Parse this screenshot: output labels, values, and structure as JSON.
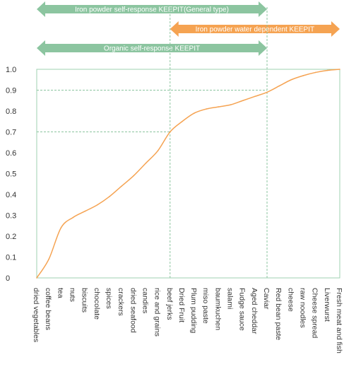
{
  "chart_data": {
    "type": "line",
    "categories": [
      "dried vegetables",
      "coffee beans",
      "tea",
      "nuts",
      "biscuits",
      "chocolate",
      "spices",
      "crackers",
      "dried seafood",
      "candies",
      "rice and grains",
      "beef jerks",
      "Dried Fruit",
      "Plum pudding",
      "miso paste",
      "baumkuchen",
      "salami",
      "Fudge sauce",
      "Aged cheddar",
      "Caviar",
      "Red bean paste",
      "cheese",
      "raw noodles",
      "Cheese spread",
      "Liverwurst",
      "Fresh meat and fish"
    ],
    "values": [
      0.0,
      0.09,
      0.24,
      0.29,
      0.32,
      0.35,
      0.39,
      0.44,
      0.49,
      0.55,
      0.61,
      0.7,
      0.75,
      0.79,
      0.81,
      0.82,
      0.83,
      0.85,
      0.87,
      0.89,
      0.92,
      0.95,
      0.97,
      0.985,
      0.995,
      1.0
    ],
    "yticks": [
      "0",
      "0.1",
      "0.2",
      "0.3",
      "0.4",
      "0.5",
      "0.6",
      "0.7",
      "0.8",
      "0.9",
      "1.0"
    ],
    "ylim": [
      0,
      1.0
    ],
    "grid": false,
    "line_color": "#f5a352",
    "reference_lines": [
      {
        "category": "beef jerks",
        "value": 0.7
      },
      {
        "category": "Caviar",
        "value": 0.9
      }
    ],
    "ranges": [
      {
        "label": "Iron powder self-response KEEPIT(General type)",
        "from": "dried vegetables",
        "to": "Caviar",
        "color": "#8cc5a0"
      },
      {
        "label": "Iron powder water dependent KEEPIT",
        "from": "beef jerks",
        "to": "Fresh meat and fish",
        "color": "#f5a352"
      },
      {
        "label": "Organic self-response KEEPIT",
        "from": "dried vegetables",
        "to": "Caviar",
        "color": "#8cc5a0"
      }
    ]
  }
}
